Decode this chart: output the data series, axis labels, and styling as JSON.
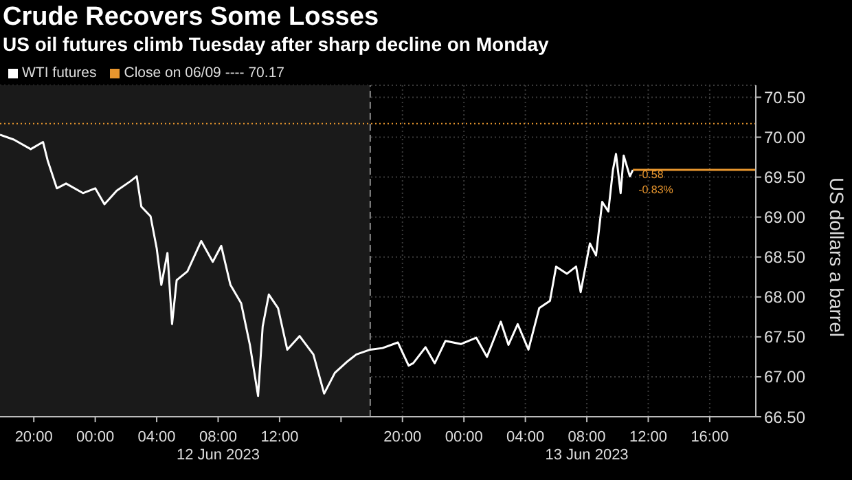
{
  "chart_data": {
    "type": "line",
    "title": "Crude Recovers Some Losses",
    "subtitle": "US oil futures climb Tuesday after sharp decline on Monday",
    "ylabel": "US dollars a barrel",
    "series": [
      {
        "name": "WTI futures",
        "color": "#ffffff",
        "x": [
          "2023-06-11T17:48",
          "2023-06-11T18:42",
          "2023-06-11T19:48",
          "2023-06-11T20:36",
          "2023-06-11T20:54",
          "2023-06-11T21:30",
          "2023-06-11T22:06",
          "2023-06-11T23:12",
          "2023-06-12T00:00",
          "2023-06-12T00:36",
          "2023-06-12T01:24",
          "2023-06-12T02:18",
          "2023-06-12T02:42",
          "2023-06-12T03:00",
          "2023-06-12T03:36",
          "2023-06-12T04:00",
          "2023-06-12T04:18",
          "2023-06-12T04:42",
          "2023-06-12T05:00",
          "2023-06-12T05:18",
          "2023-06-12T06:00",
          "2023-06-12T06:54",
          "2023-06-12T07:39",
          "2023-06-12T08:12",
          "2023-06-12T08:48",
          "2023-06-12T09:30",
          "2023-06-12T10:04",
          "2023-06-12T10:36",
          "2023-06-12T10:54",
          "2023-06-12T11:18",
          "2023-06-12T11:54",
          "2023-06-12T12:30",
          "2023-06-12T13:18",
          "2023-06-12T14:12",
          "2023-06-12T14:54",
          "2023-06-12T15:36",
          "2023-06-12T16:24",
          "2023-06-12T17:00",
          "2023-06-12T17:54",
          "2023-06-12T18:42",
          "2023-06-12T19:42",
          "2023-06-12T20:24",
          "2023-06-12T20:42",
          "2023-06-12T21:30",
          "2023-06-12T22:06",
          "2023-06-12T22:48",
          "2023-06-12T23:48",
          "2023-06-13T00:48",
          "2023-06-13T01:30",
          "2023-06-13T02:24",
          "2023-06-13T02:54",
          "2023-06-13T03:30",
          "2023-06-13T04:12",
          "2023-06-13T04:54",
          "2023-06-13T05:36",
          "2023-06-13T06:00",
          "2023-06-13T06:42",
          "2023-06-13T07:18",
          "2023-06-13T07:36",
          "2023-06-13T08:12",
          "2023-06-13T08:36",
          "2023-06-13T09:00",
          "2023-06-13T09:24",
          "2023-06-13T09:42",
          "2023-06-13T09:54",
          "2023-06-13T10:12",
          "2023-06-13T10:24",
          "2023-06-13T10:48",
          "2023-06-13T11:00"
        ],
        "values": [
          70.03,
          69.97,
          69.85,
          69.94,
          69.71,
          69.36,
          69.42,
          69.3,
          69.36,
          69.16,
          69.33,
          69.45,
          69.51,
          69.13,
          69.01,
          68.61,
          68.15,
          68.55,
          67.66,
          68.21,
          68.32,
          68.7,
          68.44,
          68.64,
          68.15,
          67.92,
          67.4,
          66.76,
          67.63,
          68.03,
          67.86,
          67.34,
          67.51,
          67.28,
          66.79,
          67.05,
          67.19,
          67.28,
          67.34,
          67.36,
          67.43,
          67.14,
          67.17,
          67.37,
          67.17,
          67.45,
          67.41,
          67.49,
          67.25,
          67.69,
          67.4,
          67.66,
          67.34,
          67.86,
          67.95,
          68.38,
          68.29,
          68.38,
          68.06,
          68.67,
          68.52,
          69.19,
          69.07,
          69.59,
          69.79,
          69.3,
          69.77,
          69.51,
          69.59
        ]
      },
      {
        "color": "#e8962e",
        "x": [
          "2023-06-13T11:00",
          "2023-06-13T19:00"
        ],
        "values": [
          69.59,
          69.59
        ]
      }
    ],
    "annotations": [
      {
        "text": "-0.58",
        "x": "2023-06-13T11:00",
        "y": 69.59
      },
      {
        "text": "-0.83%",
        "x": "2023-06-13T11:00",
        "y": 69.59
      }
    ],
    "ref_lines": [
      {
        "axis": "y",
        "value": 70.17,
        "label": "Close on 06/09 ---- 70.17",
        "color": "#e8962e",
        "line_style": "dotted"
      },
      {
        "axis": "x",
        "value": "2023-06-12T17:54",
        "color": "#888888",
        "line_style": "dashed"
      }
    ],
    "bands": [
      {
        "axis": "x",
        "from": "2023-06-11T17:48",
        "to": "2023-06-12T17:54",
        "color": "#1a1a1a"
      }
    ],
    "xlim": [
      "2023-06-11T17:48",
      "2023-06-13T19:00"
    ],
    "xticks": [
      {
        "value": "2023-06-11T20:00",
        "label": "20:00"
      },
      {
        "value": "2023-06-12T00:00",
        "label": "00:00"
      },
      {
        "value": "2023-06-12T04:00",
        "label": "04:00"
      },
      {
        "value": "2023-06-12T08:00",
        "label": "08:00\n12 Jun 2023"
      },
      {
        "value": "2023-06-12T12:00",
        "label": "12:00"
      },
      {
        "value": "2023-06-12T16:00",
        "label": null
      },
      {
        "value": "2023-06-12T20:00",
        "label": "20:00"
      },
      {
        "value": "2023-06-13T00:00",
        "label": "00:00"
      },
      {
        "value": "2023-06-13T04:00",
        "label": "04:00"
      },
      {
        "value": "2023-06-13T08:00",
        "label": "08:00\n13 Jun 2023"
      },
      {
        "value": "2023-06-13T12:00",
        "label": "12:00"
      },
      {
        "value": "2023-06-13T16:00",
        "label": "16:00"
      }
    ],
    "ylim": [
      66.5,
      70.65
    ],
    "yticks": [
      {
        "value": 66.5,
        "label": "66.50"
      },
      {
        "value": 67,
        "label": "67.00"
      },
      {
        "value": 67.5,
        "label": "67.50"
      },
      {
        "value": 68,
        "label": "68.00"
      },
      {
        "value": 68.5,
        "label": "68.50"
      },
      {
        "value": 69,
        "label": "69.00"
      },
      {
        "value": 69.5,
        "label": "69.50"
      },
      {
        "value": 70,
        "label": "70.00"
      },
      {
        "value": 70.5,
        "label": "70.50"
      }
    ],
    "grid": true,
    "legend": "top left",
    "marker": "none",
    "line_style": "solid"
  }
}
